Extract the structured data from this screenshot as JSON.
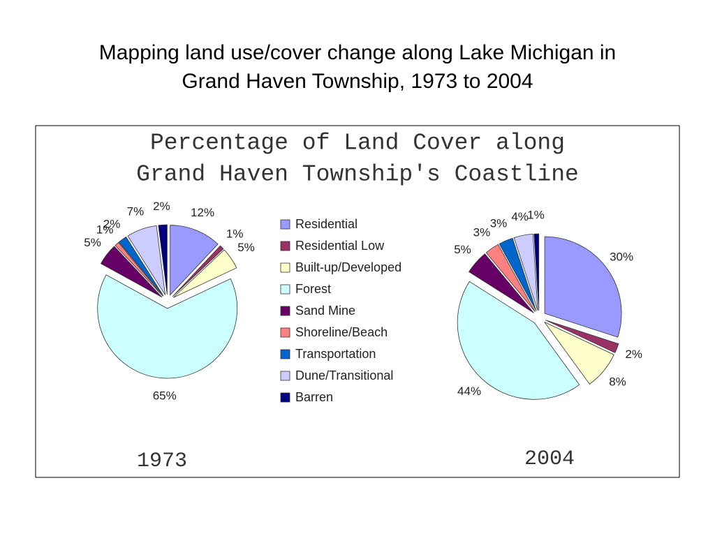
{
  "title": [
    "Mapping land use/cover change along Lake Michigan in",
    "Grand Haven Township, 1973 to 2004"
  ],
  "figure_title": [
    "Percentage of Land Cover along",
    "Grand Haven Township's Coastline"
  ],
  "chart_data": [
    {
      "type": "pie",
      "label": "1973",
      "categories": [
        "Residential",
        "Residential Low",
        "Built-up/Developed",
        "Forest",
        "Sand Mine",
        "Shoreline/Beach",
        "Transportation",
        "Dune/Transitional",
        "Barren"
      ],
      "values": [
        12,
        1,
        5,
        65,
        5,
        1,
        2,
        7,
        2
      ],
      "value_labels": [
        "12%",
        "1%",
        "5%",
        "65%",
        "5%",
        "1%",
        "2%",
        "7%",
        "2%"
      ],
      "colors": [
        "#9999ff",
        "#993366",
        "#ffffcc",
        "#ccffff",
        "#660066",
        "#ff8080",
        "#0066cc",
        "#ccccff",
        "#000080"
      ]
    },
    {
      "type": "pie",
      "label": "2004",
      "categories": [
        "Residential",
        "Residential Low",
        "Built-up/Developed",
        "Forest",
        "Sand Mine",
        "Shoreline/Beach",
        "Transportation",
        "Dune/Transitional",
        "Barren"
      ],
      "values": [
        30,
        2,
        8,
        44,
        5,
        3,
        3,
        4,
        1
      ],
      "value_labels": [
        "30%",
        "2%",
        "8%",
        "44%",
        "5%",
        "3%",
        "3%",
        "4%",
        "1%"
      ],
      "colors": [
        "#9999ff",
        "#993366",
        "#ffffcc",
        "#ccffff",
        "#660066",
        "#ff8080",
        "#0066cc",
        "#ccccff",
        "#000080"
      ]
    }
  ]
}
